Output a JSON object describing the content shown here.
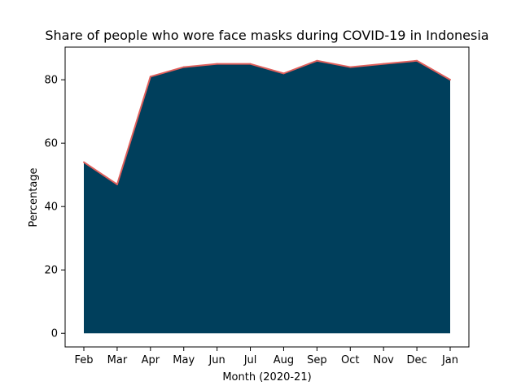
{
  "chart_data": {
    "type": "area",
    "title": "Share of people who wore face masks during COVID-19 in Indonesia",
    "xlabel": "Month (2020-21)",
    "ylabel": "Percentage",
    "categories": [
      "Feb",
      "Mar",
      "Apr",
      "May",
      "Jun",
      "Jul",
      "Aug",
      "Sep",
      "Oct",
      "Nov",
      "Dec",
      "Jan"
    ],
    "series": [
      {
        "values": [
          54,
          47,
          81,
          84,
          85,
          85,
          82,
          86,
          84,
          85,
          86,
          80
        ]
      }
    ],
    "ylim": [
      -4.3,
      90.3
    ],
    "yticks": [
      0,
      20,
      40,
      60,
      80
    ],
    "grid": false,
    "colors": {
      "fill": "#003f5c",
      "line": "#e0605c"
    }
  }
}
